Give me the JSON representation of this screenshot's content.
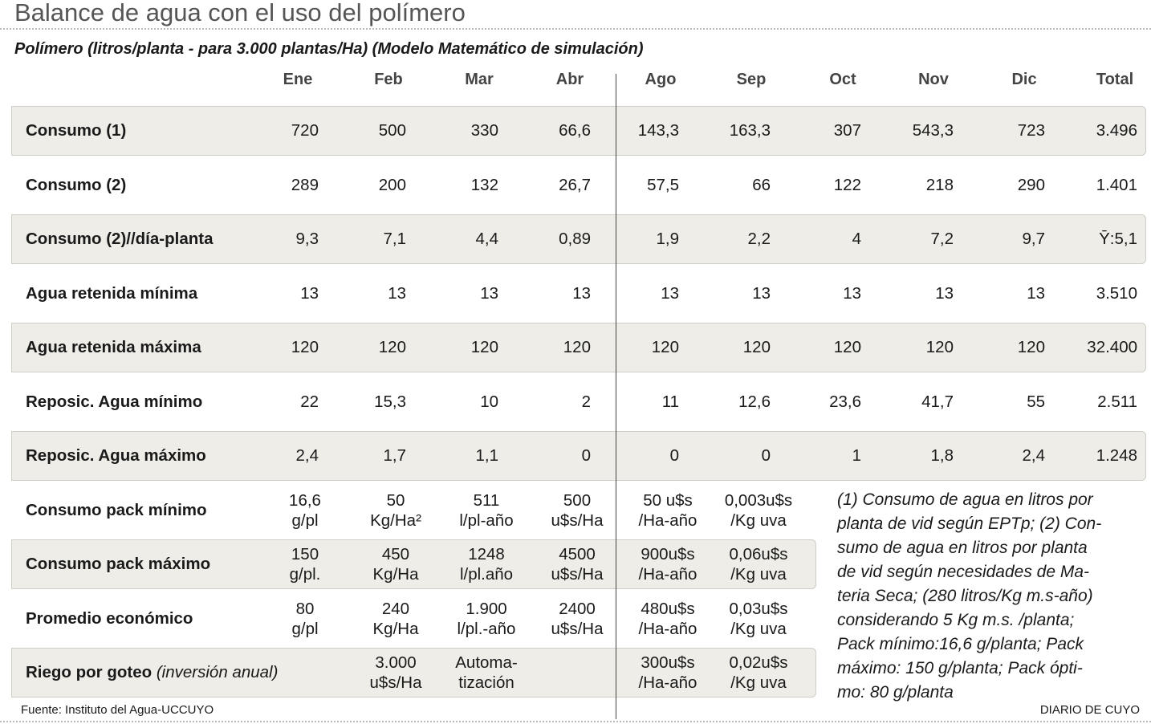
{
  "header": {
    "title": "Balance de agua con el uso del polímero",
    "subtitle": "Polímero (litros/planta - para 3.000 plantas/Ha) (Modelo Matemático de simulación)"
  },
  "table": {
    "columns": [
      "Ene",
      "Feb",
      "Mar",
      "Abr",
      "Ago",
      "Sep",
      "Oct",
      "Nov",
      "Dic",
      "Total"
    ],
    "rows": [
      {
        "label": "Consumo (1)",
        "values": [
          "720",
          "500",
          "330",
          "66,6",
          "143,3",
          "163,3",
          "307",
          "543,3",
          "723",
          "3.496"
        ]
      },
      {
        "label": "Consumo (2)",
        "values": [
          "289",
          "200",
          "132",
          "26,7",
          "57,5",
          "66",
          "122",
          "218",
          "290",
          "1.401"
        ]
      },
      {
        "label": "Consumo (2)//día-planta",
        "values": [
          "9,3",
          "7,1",
          "4,4",
          "0,89",
          "1,9",
          "2,2",
          "4",
          "7,2",
          "9,7",
          "Ȳ:5,1"
        ]
      },
      {
        "label": "Agua retenida mínima",
        "values": [
          "13",
          "13",
          "13",
          "13",
          "13",
          "13",
          "13",
          "13",
          "13",
          "3.510"
        ]
      },
      {
        "label": "Agua retenida máxima",
        "values": [
          "120",
          "120",
          "120",
          "120",
          "120",
          "120",
          "120",
          "120",
          "120",
          "32.400"
        ]
      },
      {
        "label": "Reposic. Agua mínimo",
        "values": [
          "22",
          "15,3",
          "10",
          "2",
          "11",
          "12,6",
          "23,6",
          "41,7",
          "55",
          "2.511"
        ]
      },
      {
        "label": "Reposic. Agua máximo",
        "values": [
          "2,4",
          "1,7",
          "1,1",
          "0",
          "0",
          "0",
          "1",
          "1,8",
          "2,4",
          "1.248"
        ]
      }
    ],
    "pack_rows": [
      {
        "label": "Consumo pack mínimo",
        "cells": [
          [
            "16,6",
            "g/pl"
          ],
          [
            "50",
            "Kg/Ha²"
          ],
          [
            "511",
            "l/pl-año"
          ],
          [
            "500",
            "u$s/Ha"
          ],
          [
            "50 u$s",
            "/Ha-año"
          ],
          [
            "0,003u$s",
            "/Kg uva"
          ]
        ]
      },
      {
        "label": "Consumo pack máximo",
        "cells": [
          [
            "150",
            "g/pl."
          ],
          [
            "450",
            "Kg/Ha"
          ],
          [
            "1248",
            "l/pl.año"
          ],
          [
            "4500",
            "u$s/Ha"
          ],
          [
            "900u$s",
            "/Ha-año"
          ],
          [
            "0,06u$s",
            "/Kg uva"
          ]
        ]
      },
      {
        "label": "Promedio económico",
        "cells": [
          [
            "80",
            "g/pl"
          ],
          [
            "240",
            "Kg/Ha"
          ],
          [
            "1.900",
            "l/pl.-año"
          ],
          [
            "2400",
            "u$s/Ha"
          ],
          [
            "480u$s",
            "/Ha-año"
          ],
          [
            "0,03u$s",
            "/Kg uva"
          ]
        ]
      },
      {
        "label": "Riego por goteo",
        "label_note": "(inversión anual)",
        "cells": [
          null,
          [
            "3.000",
            "u$s/Ha"
          ],
          [
            "Automa-",
            "tización"
          ],
          null,
          [
            "300u$s",
            "/Ha-año"
          ],
          [
            "0,02u$s",
            "/Kg uva"
          ]
        ]
      }
    ]
  },
  "note": [
    "(1) Consumo de agua en litros por",
    "planta de vid según EPTp; (2) Con-",
    "sumo de agua en litros por planta",
    "de vid según necesidades de Ma-",
    "teria Seca; (280 litros/Kg m.s-año)",
    "considerando 5 Kg m.s. /planta;",
    "Pack mínimo:16,6 g/planta; Pack",
    "máximo: 150 g/planta; Pack ópti-",
    "mo: 80 g/planta"
  ],
  "footer": {
    "source": "Fuente: Instituto del Agua-UCCUYO",
    "brand": "DIARIO DE CUYO"
  }
}
